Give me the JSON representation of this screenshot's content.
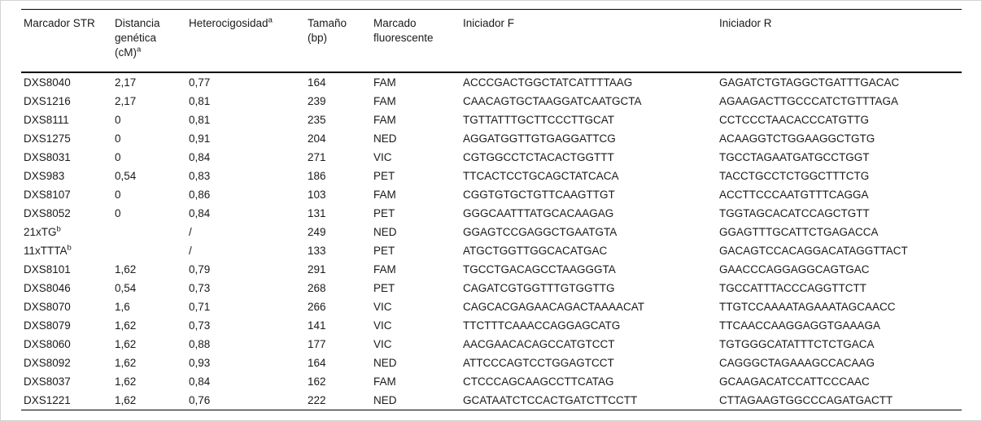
{
  "table": {
    "columns": [
      {
        "label": "Marcador STR",
        "sup": ""
      },
      {
        "label": "Distancia genética (cM)",
        "sup": "a"
      },
      {
        "label": "Heterocigosidad",
        "sup": "a"
      },
      {
        "label": "Tamaño (bp)",
        "sup": ""
      },
      {
        "label": "Marcado fluorescente",
        "sup": ""
      },
      {
        "label": "Iniciador F",
        "sup": ""
      },
      {
        "label": "Iniciador R",
        "sup": ""
      }
    ],
    "rows": [
      {
        "marker": "DXS8040",
        "marker_sup": "",
        "distancia": "2,17",
        "heterocigosidad": "0,77",
        "tamano": "164",
        "marcado": "FAM",
        "iniciador_f": "ACCCGACTGGCTATCATTTTAAG",
        "iniciador_r": "GAGATCTGTAGGCTGATTTGACAC"
      },
      {
        "marker": "DXS1216",
        "marker_sup": "",
        "distancia": "2,17",
        "heterocigosidad": "0,81",
        "tamano": "239",
        "marcado": "FAM",
        "iniciador_f": "CAACAGTGCTAAGGATCAATGCTA",
        "iniciador_r": "AGAAGACTTGCCCATCTGTTTAGA"
      },
      {
        "marker": "DXS8111",
        "marker_sup": "",
        "distancia": "0",
        "heterocigosidad": "0,81",
        "tamano": "235",
        "marcado": "FAM",
        "iniciador_f": "TGTTATTTGCTTCCCTTGCAT",
        "iniciador_r": "CCTCCCTAACACCCATGTTG"
      },
      {
        "marker": "DXS1275",
        "marker_sup": "",
        "distancia": "0",
        "heterocigosidad": "0,91",
        "tamano": "204",
        "marcado": "NED",
        "iniciador_f": "AGGATGGTTGTGAGGATTCG",
        "iniciador_r": "ACAAGGTCTGGAAGGCTGTG"
      },
      {
        "marker": "DXS8031",
        "marker_sup": "",
        "distancia": "0",
        "heterocigosidad": "0,84",
        "tamano": "271",
        "marcado": "VIC",
        "iniciador_f": "CGTGGCCTCTACACTGGTTT",
        "iniciador_r": "TGCCTAGAATGATGCCTGGT"
      },
      {
        "marker": "DXS983",
        "marker_sup": "",
        "distancia": "0,54",
        "heterocigosidad": "0,83",
        "tamano": "186",
        "marcado": "PET",
        "iniciador_f": "TTCACTCCTGCAGCTATCACA",
        "iniciador_r": "TACCTGCCTCTGGCTTTCTG"
      },
      {
        "marker": "DXS8107",
        "marker_sup": "",
        "distancia": "0",
        "heterocigosidad": "0,86",
        "tamano": "103",
        "marcado": "FAM",
        "iniciador_f": "CGGTGTGCTGTTCAAGTTGT",
        "iniciador_r": "ACCTTCCCAATGTTTCAGGA"
      },
      {
        "marker": "DXS8052",
        "marker_sup": "",
        "distancia": "0",
        "heterocigosidad": "0,84",
        "tamano": "131",
        "marcado": "PET",
        "iniciador_f": "GGGCAATTTATGCACAAGAG",
        "iniciador_r": "TGGTAGCACATCCAGCTGTT"
      },
      {
        "marker": "21xTG",
        "marker_sup": "b",
        "distancia": "",
        "heterocigosidad": "/",
        "tamano": "249",
        "marcado": "NED",
        "iniciador_f": "GGAGTCCGAGGCTGAATGTA",
        "iniciador_r": "GGAGTTTGCATTCTGAGACCA"
      },
      {
        "marker": "11xTTTA",
        "marker_sup": "b",
        "distancia": "",
        "heterocigosidad": "/",
        "tamano": "133",
        "marcado": "PET",
        "iniciador_f": "ATGCTGGTTGGCACATGAC",
        "iniciador_r": "GACAGTCCACAGGACATAGGTTACT"
      },
      {
        "marker": "DXS8101",
        "marker_sup": "",
        "distancia": "1,62",
        "heterocigosidad": "0,79",
        "tamano": "291",
        "marcado": "FAM",
        "iniciador_f": "TGCCTGACAGCCTAAGGGTA",
        "iniciador_r": "GAACCCAGGAGGCAGTGAC"
      },
      {
        "marker": "DXS8046",
        "marker_sup": "",
        "distancia": "0,54",
        "heterocigosidad": "0,73",
        "tamano": "268",
        "marcado": "PET",
        "iniciador_f": "CAGATCGTGGTTTGTGGTTG",
        "iniciador_r": "TGCCATTTACCCAGGTTCTT"
      },
      {
        "marker": "DXS8070",
        "marker_sup": "",
        "distancia": "1,6",
        "heterocigosidad": "0,71",
        "tamano": "266",
        "marcado": "VIC",
        "iniciador_f": "CAGCACGAGAACAGACTAAAACAT",
        "iniciador_r": "TTGTCCAAAATAGAAATAGCAACC"
      },
      {
        "marker": "DXS8079",
        "marker_sup": "",
        "distancia": "1,62",
        "heterocigosidad": "0,73",
        "tamano": "141",
        "marcado": "VIC",
        "iniciador_f": "TTCTTTCAAACCAGGAGCATG",
        "iniciador_r": "TTCAACCAAGGAGGTGAAAGA"
      },
      {
        "marker": "DXS8060",
        "marker_sup": "",
        "distancia": "1,62",
        "heterocigosidad": "0,88",
        "tamano": "177",
        "marcado": "VIC",
        "iniciador_f": "AACGAACACAGCCATGTCCT",
        "iniciador_r": "TGTGGGCATATTTCTCTGACA"
      },
      {
        "marker": "DXS8092",
        "marker_sup": "",
        "distancia": "1,62",
        "heterocigosidad": "0,93",
        "tamano": "164",
        "marcado": "NED",
        "iniciador_f": "ATTCCCAGTCCTGGAGTCCT",
        "iniciador_r": "CAGGGCTAGAAAGCCACAAG"
      },
      {
        "marker": "DXS8037",
        "marker_sup": "",
        "distancia": "1,62",
        "heterocigosidad": "0,84",
        "tamano": "162",
        "marcado": "FAM",
        "iniciador_f": "CTCCCAGCAAGCCTTCATAG",
        "iniciador_r": "GCAAGACATCCATTCCCAAC"
      },
      {
        "marker": "DXS1221",
        "marker_sup": "",
        "distancia": "1,62",
        "heterocigosidad": "0,76",
        "tamano": "222",
        "marcado": "NED",
        "iniciador_f": "GCATAATCTCCACTGATCTTCCTT",
        "iniciador_r": "CTTAGAAGTGGCCCAGATGACTT"
      }
    ]
  }
}
